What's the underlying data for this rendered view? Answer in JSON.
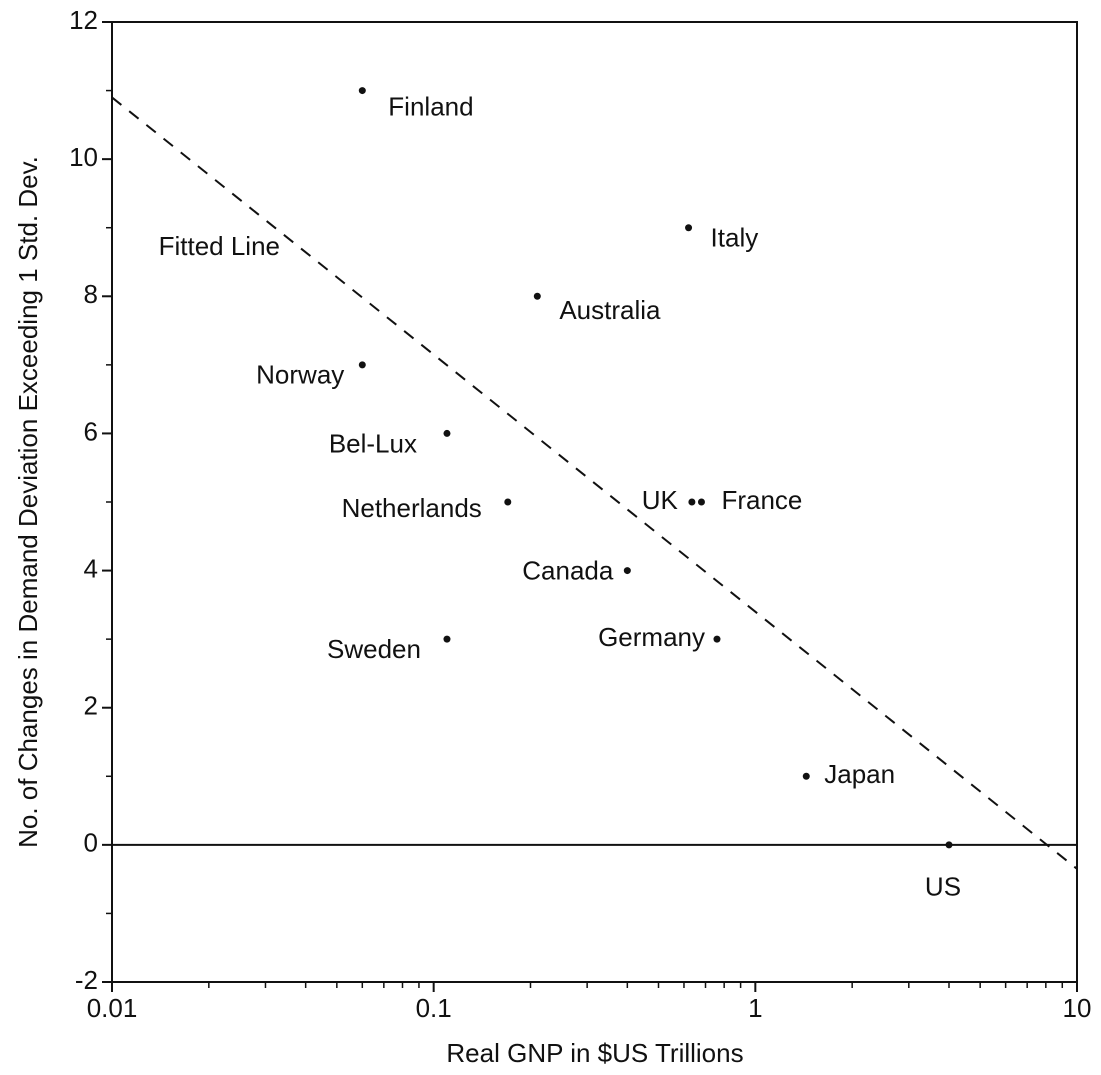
{
  "chart_data": {
    "type": "scatter",
    "x_label": "Real GNP in $US Trillions",
    "y_label": "No. of Changes in Demand Deviation Exceeding 1 Std. Dev.",
    "x_scale": "log",
    "xlim": [
      0.01,
      10
    ],
    "xticks": [
      0.01,
      0.1,
      1,
      10
    ],
    "ylim": [
      -2,
      12
    ],
    "yticks": [
      -2,
      0,
      2,
      4,
      6,
      8,
      10,
      12
    ],
    "zero_line": true,
    "color": "#111111",
    "points": {
      "labels": [
        "Finland",
        "Italy",
        "Australia",
        "Norway",
        "Bel-Lux",
        "Netherlands",
        "UK",
        "France",
        "Canada",
        "Sweden",
        "Germany",
        "Japan",
        "US"
      ],
      "x": [
        0.06,
        0.62,
        0.21,
        0.06,
        0.11,
        0.17,
        0.635,
        0.68,
        0.4,
        0.11,
        0.76,
        1.44,
        4
      ],
      "y": [
        11,
        9,
        8,
        7,
        6,
        5,
        5,
        5,
        4,
        3,
        3,
        1,
        0
      ]
    },
    "fit": {
      "name": "Fitted Line",
      "x": [
        0.01,
        10
      ],
      "y": [
        10.9,
        -0.35
      ]
    }
  }
}
